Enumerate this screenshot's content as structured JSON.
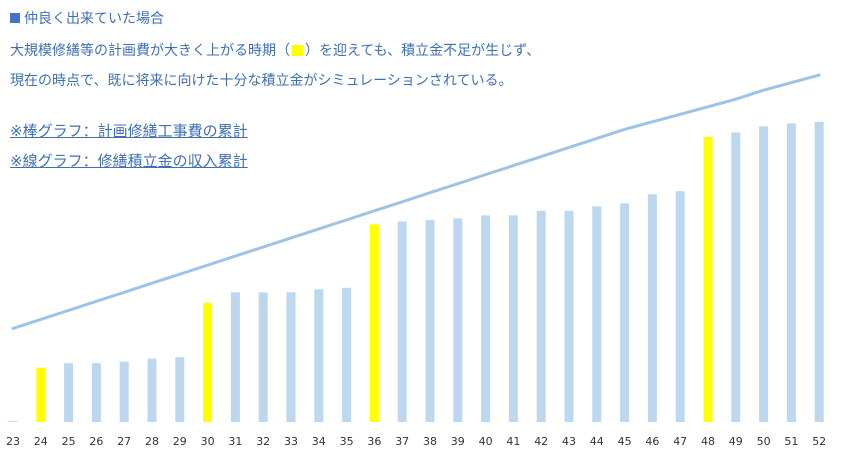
{
  "header": {
    "title": "仲良く出来ていた場合",
    "description_line1_before": "大規模修繕等の計画費が大きく上がる時期（",
    "description_line1_after": "）を迎えても、積立金不足が生じず、",
    "description_line2": "現在の時点で、既に将来に向けた十分な積立金がシミュレーションされている。",
    "note_bars": "※棒グラフ：計画修繕工事費の累計",
    "note_line": "※線グラフ：修繕積立金の収入累計"
  },
  "colors": {
    "title": "#3f6fb5",
    "title_square": "#4472c4",
    "bar": "#bdd7ee",
    "bar_highlight": "#ffff00",
    "line": "#9dc3e6"
  },
  "chart_data": {
    "type": "bar",
    "categories": [
      "23",
      "24",
      "25",
      "26",
      "27",
      "28",
      "29",
      "30",
      "31",
      "32",
      "33",
      "34",
      "35",
      "36",
      "37",
      "38",
      "39",
      "40",
      "41",
      "42",
      "43",
      "44",
      "45",
      "46",
      "47",
      "48",
      "49",
      "50",
      "51",
      "52"
    ],
    "highlight_categories": [
      "24",
      "30",
      "36",
      "48"
    ],
    "series": [
      {
        "type": "bar",
        "values": [
          0.3,
          18,
          19.5,
          19.5,
          20,
          21,
          21.5,
          39.5,
          43,
          43,
          43,
          44,
          44.5,
          65.5,
          66.5,
          67,
          67.5,
          68.5,
          68.5,
          70,
          70,
          71.5,
          72.5,
          75.5,
          76.5,
          94.5,
          96,
          98,
          99,
          99.5
        ]
      },
      {
        "type": "line",
        "values": [
          31,
          34,
          37,
          40,
          43,
          46,
          49,
          52,
          55,
          58,
          61,
          64,
          67,
          70,
          73,
          76,
          79,
          82,
          85,
          88,
          91,
          94,
          97,
          99.5,
          102,
          104.5,
          107,
          110,
          112.5,
          115
        ]
      }
    ],
    "ylim": [
      0,
      120
    ],
    "grid": false,
    "legend": "none"
  }
}
